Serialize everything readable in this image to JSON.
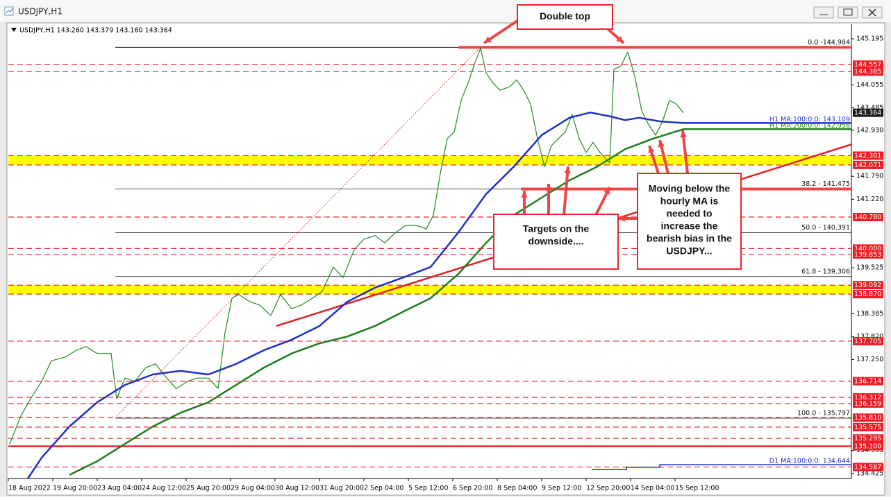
{
  "window_title": "USDJPY,H1",
  "chart_data": {
    "type": "line",
    "header": "USDJPY,H1  143.260 143.379 143.160 143.364",
    "xlim": [
      0,
      607
    ],
    "ylim": [
      134.302,
      145.539
    ],
    "xticks": [
      {
        "value": 0,
        "label": "18 Aug 2022"
      },
      {
        "value": 32,
        "label": "19 Aug 20:00"
      },
      {
        "value": 64,
        "label": "23 Aug 04:00"
      },
      {
        "value": 96,
        "label": "24 Aug 12:00"
      },
      {
        "value": 128,
        "label": "25 Aug 20:00"
      },
      {
        "value": 160,
        "label": "29 Aug 04:00"
      },
      {
        "value": 192,
        "label": "30 Aug 12:00"
      },
      {
        "value": 224,
        "label": "31 Aug 20:00"
      },
      {
        "value": 256,
        "label": "2 Sep 04:00"
      },
      {
        "value": 288,
        "label": "5 Sep 12:00"
      },
      {
        "value": 320,
        "label": "6 Sep 20:00"
      },
      {
        "value": 352,
        "label": "8 Sep 04:00"
      },
      {
        "value": 384,
        "label": "9 Sep 12:00"
      },
      {
        "value": 416,
        "label": "12 Sep 20:00"
      },
      {
        "value": 448,
        "label": "14 Sep 04:00"
      },
      {
        "value": 480,
        "label": "15 Sep 12:00"
      }
    ],
    "yticks": [
      145.195,
      144.055,
      143.485,
      {
        "value": 142.93,
        "label": "142.930"
      },
      {
        "value": 141.79,
        "label": "141.790"
      },
      {
        "value": 141.22,
        "label": "141.220"
      },
      139.525,
      138.385,
      {
        "value": 137.82,
        "label": "137.820"
      },
      {
        "value": 137.25,
        "label": "137.250"
      },
      134.995,
      134.425
    ],
    "series": [
      {
        "name": "USDJPY",
        "color": "#1f8a1f",
        "width": 1.2,
        "x": [
          1,
          9,
          16,
          24,
          31,
          41,
          49,
          56,
          64,
          74,
          78,
          84,
          91,
          99,
          106,
          114,
          121,
          129,
          136,
          144,
          151,
          156,
          161,
          166,
          174,
          181,
          189,
          196,
          204,
          211,
          219,
          226,
          234,
          241,
          249,
          256,
          264,
          271,
          279,
          286,
          294,
          301,
          306,
          311,
          316,
          321,
          326,
          331,
          336,
          340,
          344,
          349,
          354,
          361,
          366,
          371,
          376,
          381,
          386,
          391,
          396,
          401,
          406,
          411,
          416,
          421,
          426,
          433,
          436,
          441,
          446,
          451,
          456,
          461,
          466,
          471,
          476,
          481,
          486
        ],
        "values": [
          135.16,
          135.85,
          136.28,
          136.71,
          137.22,
          137.31,
          137.48,
          137.57,
          137.4,
          137.4,
          136.28,
          136.79,
          136.71,
          137.05,
          137.14,
          136.79,
          136.53,
          136.71,
          136.79,
          136.79,
          136.53,
          137.91,
          138.77,
          138.86,
          138.68,
          138.6,
          138.34,
          138.86,
          138.51,
          138.6,
          138.77,
          138.94,
          139.54,
          139.28,
          139.97,
          140.23,
          140.32,
          140.14,
          140.4,
          140.57,
          140.57,
          140.49,
          140.83,
          141.86,
          142.72,
          142.89,
          143.67,
          144.1,
          144.61,
          144.96,
          144.35,
          144.1,
          143.92,
          144.01,
          144.18,
          143.92,
          143.58,
          142.72,
          142.03,
          142.55,
          142.72,
          142.89,
          143.32,
          142.72,
          142.38,
          142.63,
          142.38,
          142.12,
          144.44,
          144.52,
          144.87,
          144.27,
          143.41,
          143.07,
          142.81,
          143.15,
          143.67,
          143.58,
          143.364
        ]
      },
      {
        "name": "H1 MA 100",
        "color": "#1c2fc8",
        "width": 2.5,
        "x": [
          14,
          24,
          44,
          64,
          84,
          104,
          124,
          144,
          164,
          184,
          204,
          224,
          244,
          264,
          284,
          304,
          324,
          344,
          364,
          384,
          404,
          419,
          434,
          444,
          454,
          469,
          486,
          607
        ],
        "values": [
          134.3,
          134.82,
          135.59,
          136.19,
          136.62,
          136.88,
          136.97,
          136.88,
          137.14,
          137.48,
          137.74,
          138.08,
          138.68,
          139.03,
          139.28,
          139.54,
          140.4,
          141.35,
          142.03,
          142.81,
          143.24,
          143.37,
          143.27,
          143.18,
          143.24,
          143.15,
          143.109,
          143.109
        ]
      },
      {
        "name": "H1 MA 200",
        "color": "#1e7d1e",
        "width": 2.5,
        "x": [
          44,
          64,
          84,
          104,
          124,
          144,
          164,
          184,
          204,
          224,
          244,
          264,
          284,
          304,
          324,
          344,
          364,
          384,
          404,
          424,
          444,
          464,
          486,
          607
        ],
        "values": [
          134.39,
          134.73,
          135.16,
          135.59,
          135.93,
          136.19,
          136.62,
          137.05,
          137.4,
          137.65,
          137.82,
          138.08,
          138.43,
          138.77,
          139.37,
          140.14,
          140.83,
          141.26,
          141.69,
          142.03,
          142.46,
          142.72,
          142.956,
          142.956
        ]
      },
      {
        "name": "D1 MA 100",
        "color": "#1c2fc8",
        "width": 1.5,
        "x": [
          420,
          445,
          445,
          469,
          469,
          607
        ],
        "values": [
          134.52,
          134.52,
          134.58,
          134.58,
          134.644,
          134.644
        ]
      }
    ],
    "ma_labels": [
      {
        "text": "H1 MA:100:0:0: 143.109",
        "value": 143.109,
        "color": "#1c2fc8"
      },
      {
        "text": "H1 MA:200:0:0: 142.956",
        "value": 142.956,
        "color": "#1e7d1e"
      },
      {
        "text": "D1 MA:100:0:0: 134.644",
        "value": 134.644,
        "color": "#1c2fc8"
      }
    ],
    "zones": [
      [
        142.071,
        142.301
      ],
      [
        138.87,
        139.092
      ]
    ],
    "levels": [
      {
        "value": 144.557,
        "label": "144.557",
        "style": "dash"
      },
      {
        "value": 144.385,
        "label": "144.385",
        "style": "dash"
      },
      {
        "value": 142.301,
        "label": "142.301",
        "style": "dash"
      },
      {
        "value": 142.071,
        "label": "142.071",
        "style": "dash"
      },
      {
        "value": 140.78,
        "label": "140.780",
        "style": "dash"
      },
      {
        "value": 140,
        "label": "140.000",
        "style": "dash"
      },
      {
        "value": 139.853,
        "label": "139.853",
        "style": "dash"
      },
      {
        "value": 139.092,
        "label": "139.092",
        "style": "dash"
      },
      {
        "value": 138.87,
        "label": "138.870",
        "style": "dash"
      },
      {
        "value": 137.705,
        "label": "137.705",
        "style": "dash"
      },
      {
        "value": 136.714,
        "label": "136.714",
        "style": "dash"
      },
      {
        "value": 136.312,
        "label": "136.312",
        "style": "dash"
      },
      {
        "value": 136.159,
        "label": "136.159",
        "style": "dash"
      },
      {
        "value": 135.81,
        "label": "135.810",
        "style": "dash"
      },
      {
        "value": 135.575,
        "label": "135.575",
        "style": "dash"
      },
      {
        "value": 135.295,
        "label": "135.295",
        "style": "dash"
      },
      {
        "value": 135.1,
        "label": "135.100",
        "style": "solid"
      },
      {
        "value": 134.587,
        "label": "134.587",
        "style": "dash"
      }
    ],
    "current_price": {
      "value": 143.364,
      "label": "143.364"
    },
    "thick_lines": [
      {
        "value": 144.984,
        "x_start": 324
      },
      {
        "value": 141.475,
        "x_start": 369
      }
    ],
    "fib_levels": [
      {
        "value": 144.984,
        "label": "0.0 -144.984"
      },
      {
        "value": 141.475,
        "label": "38.2 - 141.475"
      },
      {
        "value": 140.391,
        "label": "50.0 - 140.391"
      },
      {
        "value": 139.306,
        "label": "61.8 - 139.306"
      },
      {
        "value": 135.797,
        "label": "100.0 - 135.797"
      }
    ],
    "trendlines": [
      {
        "x": [
          193,
          607
        ],
        "values": [
          138.08,
          142.58
        ],
        "style": "solid"
      },
      {
        "x": [
          78,
          340
        ],
        "values": [
          135.85,
          144.99
        ],
        "style": "dot"
      }
    ],
    "annotations": [
      {
        "lines": [
          "Double top"
        ]
      },
      {
        "lines": [
          "Targets on the",
          "downside...."
        ]
      },
      {
        "lines": [
          "Moving below the",
          "hourly MA is",
          "needed to",
          "increase the",
          "bearish bias in the",
          "USDJPY..."
        ]
      }
    ]
  }
}
